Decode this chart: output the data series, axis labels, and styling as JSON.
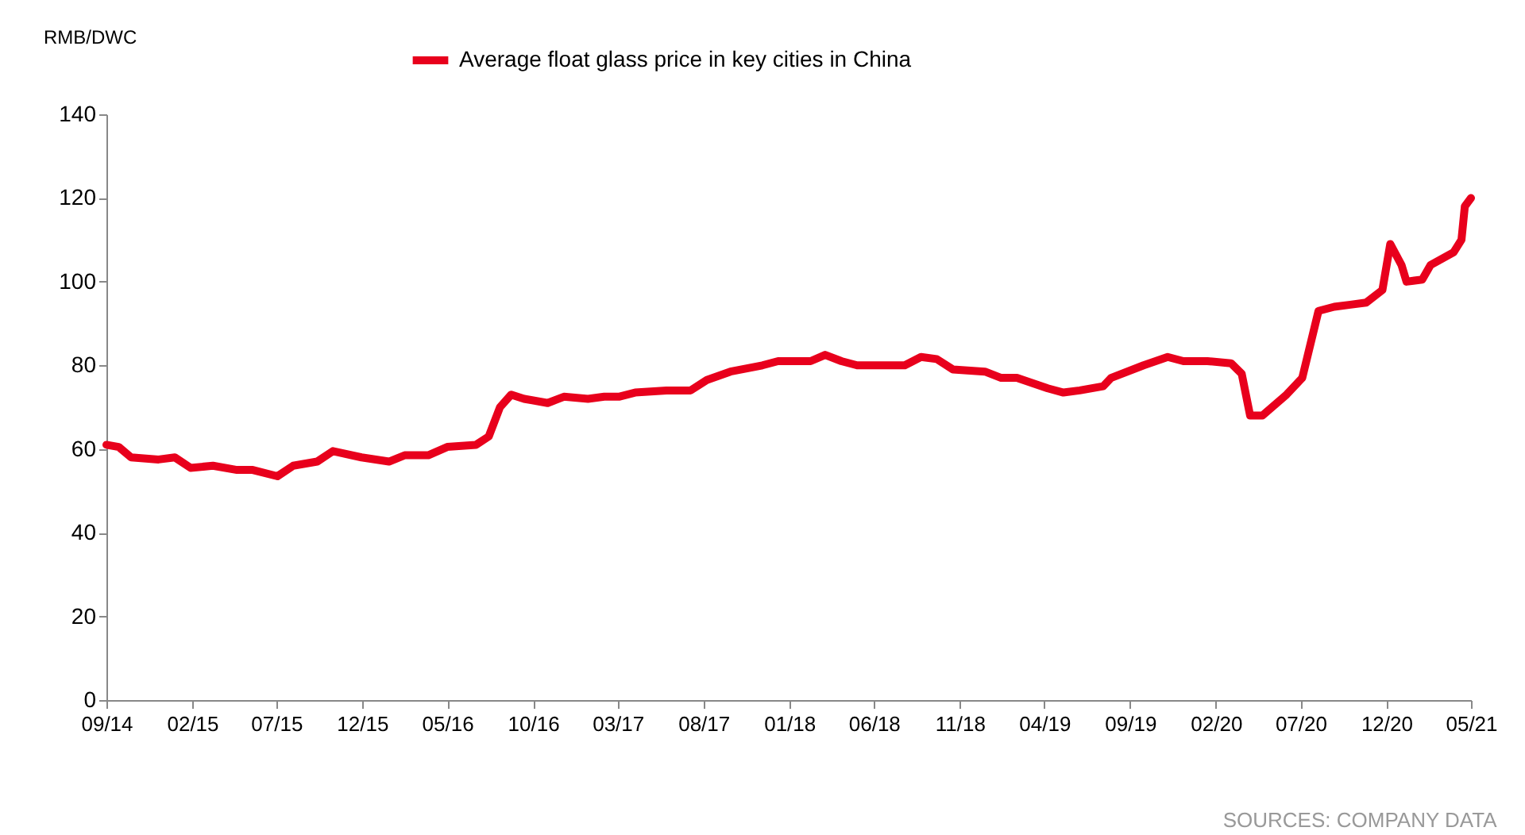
{
  "chart_data": {
    "type": "line",
    "ylabel": "RMB/DWC",
    "annotations": [
      "SOURCES: COMPANY DATA"
    ],
    "x": [
      "2014-09-01",
      "2014-09-23",
      "2014-10-15",
      "2014-12-03",
      "2015-01-01",
      "2015-01-29",
      "2015-03-10",
      "2015-04-22",
      "2015-05-20",
      "2015-07-03",
      "2015-07-31",
      "2015-09-12",
      "2015-10-10",
      "2015-11-30",
      "2016-01-18",
      "2016-02-15",
      "2016-03-28",
      "2016-05-01",
      "2016-06-21",
      "2016-07-14",
      "2016-08-03",
      "2016-08-23",
      "2016-09-15",
      "2016-10-27",
      "2016-11-25",
      "2017-01-07",
      "2017-02-05",
      "2017-03-03",
      "2017-04-01",
      "2017-05-27",
      "2017-07-09",
      "2017-08-07",
      "2017-09-18",
      "2017-11-14",
      "2017-12-12",
      "2018-02-08",
      "2018-03-06",
      "2018-04-04",
      "2018-05-02",
      "2018-06-14",
      "2018-07-26",
      "2018-08-24",
      "2018-09-21",
      "2018-10-20",
      "2018-12-16",
      "2019-01-14",
      "2019-02-11",
      "2019-04-07",
      "2019-05-05",
      "2019-06-03",
      "2019-07-15",
      "2019-07-29",
      "2019-09-25",
      "2019-11-07",
      "2019-12-05",
      "2020-01-17",
      "2020-02-28",
      "2020-03-18",
      "2020-04-02",
      "2020-04-24",
      "2020-06-06",
      "2020-07-04",
      "2020-08-02",
      "2020-08-30",
      "2020-09-28",
      "2020-10-26",
      "2020-11-24",
      "2020-12-08",
      "2020-12-28",
      "2021-01-06",
      "2021-02-03",
      "2021-02-18",
      "2021-03-31",
      "2021-04-14",
      "2021-04-20",
      "2021-05-01"
    ],
    "series": [
      {
        "name": "Average float glass price in key cities in China",
        "color": "#e8001c",
        "values": [
          61,
          60.5,
          58,
          57.5,
          58,
          55.5,
          56,
          55,
          55,
          53.5,
          56,
          57,
          59.5,
          58,
          57,
          58.5,
          58.5,
          60.5,
          61,
          63,
          70,
          73,
          72,
          71,
          72.5,
          72,
          72.5,
          72.5,
          73.5,
          74,
          74,
          76.5,
          78.5,
          80,
          81,
          81,
          82.5,
          81,
          80,
          80,
          80,
          82,
          81.5,
          79,
          78.5,
          77,
          77,
          74.5,
          73.5,
          74,
          75,
          77,
          80,
          82,
          81,
          81,
          80.5,
          78,
          68,
          68,
          73,
          77,
          93,
          94,
          94.5,
          95,
          98,
          109,
          104,
          100,
          100.5,
          104,
          107,
          110,
          118,
          120
        ]
      }
    ],
    "xlim": [
      "2014-09-01",
      "2021-05-01"
    ],
    "xticks": [
      {
        "value": "2014-09-01",
        "label": "09/14"
      },
      {
        "value": "2015-02-01",
        "label": "02/15"
      },
      {
        "value": "2015-07-01",
        "label": "07/15"
      },
      {
        "value": "2015-12-01",
        "label": "12/15"
      },
      {
        "value": "2016-05-01",
        "label": "05/16"
      },
      {
        "value": "2016-10-01",
        "label": "10/16"
      },
      {
        "value": "2017-03-01",
        "label": "03/17"
      },
      {
        "value": "2017-08-01",
        "label": "08/17"
      },
      {
        "value": "2018-01-01",
        "label": "01/18"
      },
      {
        "value": "2018-06-01",
        "label": "06/18"
      },
      {
        "value": "2018-11-01",
        "label": "11/18"
      },
      {
        "value": "2019-04-01",
        "label": "04/19"
      },
      {
        "value": "2019-09-01",
        "label": "09/19"
      },
      {
        "value": "2020-02-01",
        "label": "02/20"
      },
      {
        "value": "2020-07-01",
        "label": "07/20"
      },
      {
        "value": "2020-12-01",
        "label": "12/20"
      },
      {
        "value": "2021-05-01",
        "label": "05/21"
      }
    ],
    "ylim": [
      0,
      140
    ],
    "yticks": [
      0,
      20,
      40,
      60,
      80,
      100,
      120,
      140
    ],
    "grid": false,
    "legend": "top",
    "marker": "none",
    "line_style": "solid"
  }
}
